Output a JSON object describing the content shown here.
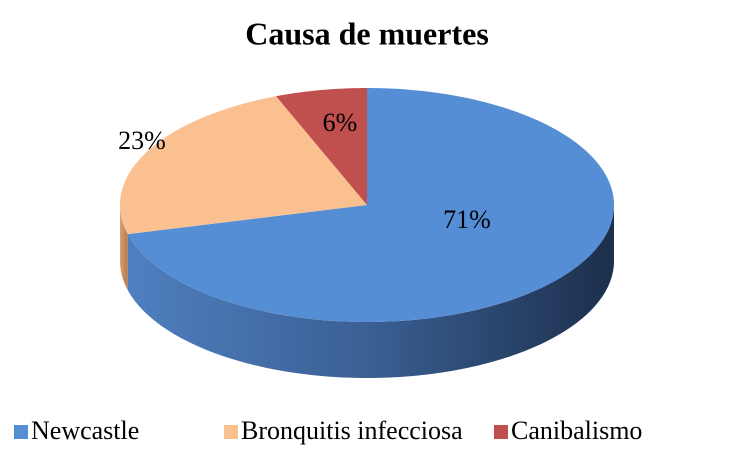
{
  "chart_data": {
    "type": "pie",
    "title": "Causa de muertes",
    "categories": [
      "Newcastle",
      "Bronquitis infecciosa",
      "Canibalismo"
    ],
    "values": [
      71,
      23,
      6
    ],
    "value_labels": [
      "71%",
      "23%",
      "6%"
    ],
    "colors": [
      "#558ed5",
      "#fac090",
      "#c0504d"
    ],
    "legend": "bottom"
  }
}
